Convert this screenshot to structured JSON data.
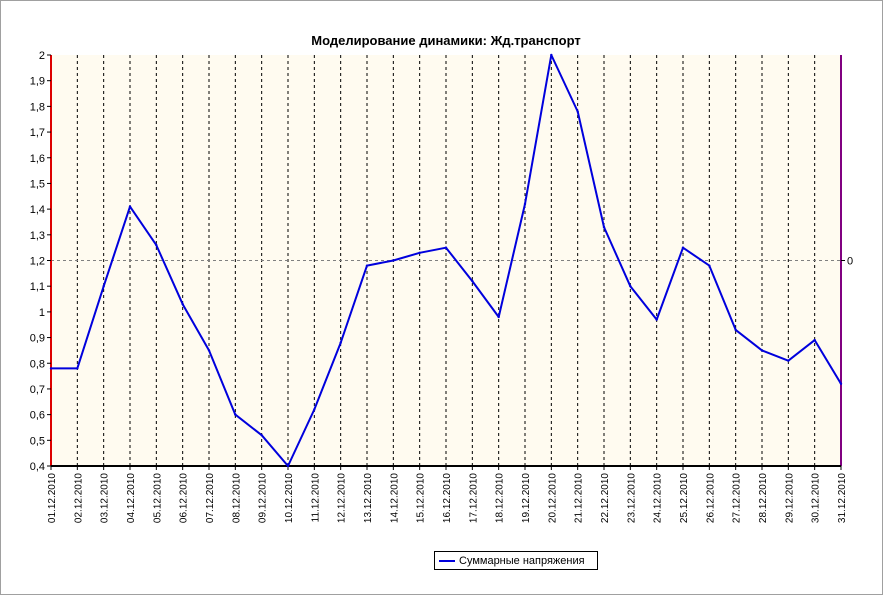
{
  "chart_data": {
    "type": "line",
    "title": "Моделирование динамики: Жд.транспорт",
    "x": [
      "01.12.2010",
      "02.12.2010",
      "03.12.2010",
      "04.12.2010",
      "05.12.2010",
      "06.12.2010",
      "07.12.2010",
      "08.12.2010",
      "09.12.2010",
      "10.12.2010",
      "11.12.2010",
      "12.12.2010",
      "13.12.2010",
      "14.12.2010",
      "15.12.2010",
      "16.12.2010",
      "17.12.2010",
      "18.12.2010",
      "19.12.2010",
      "20.12.2010",
      "21.12.2010",
      "22.12.2010",
      "23.12.2010",
      "24.12.2010",
      "25.12.2010",
      "26.12.2010",
      "27.12.2010",
      "28.12.2010",
      "29.12.2010",
      "30.12.2010",
      "31.12.2010"
    ],
    "series": [
      {
        "name": "Суммарные напряжения",
        "color": "#0000dd",
        "values": [
          0.78,
          0.78,
          1.1,
          1.41,
          1.26,
          1.03,
          0.85,
          0.6,
          0.52,
          0.4,
          0.62,
          0.88,
          1.18,
          1.2,
          1.23,
          1.25,
          1.12,
          0.98,
          1.42,
          2.0,
          1.78,
          1.33,
          1.1,
          0.97,
          1.25,
          1.18,
          0.93,
          0.85,
          0.81,
          0.89,
          0.72
        ]
      }
    ],
    "ylim": [
      0.4,
      2.0
    ],
    "yticks": [
      "0,4",
      "0,5",
      "0,6",
      "0,7",
      "0,8",
      "0,9",
      "1",
      "1,1",
      "1,2",
      "1,3",
      "1,4",
      "1,5",
      "1,6",
      "1,7",
      "1,8",
      "1,9",
      "2"
    ],
    "y2_label": "0",
    "grid": true,
    "legend": "bottom",
    "colors": {
      "plot_bg": "#fffbf0",
      "line": "#0000dd",
      "left_axis": "#dd0000",
      "right_axis": "#800080"
    }
  }
}
